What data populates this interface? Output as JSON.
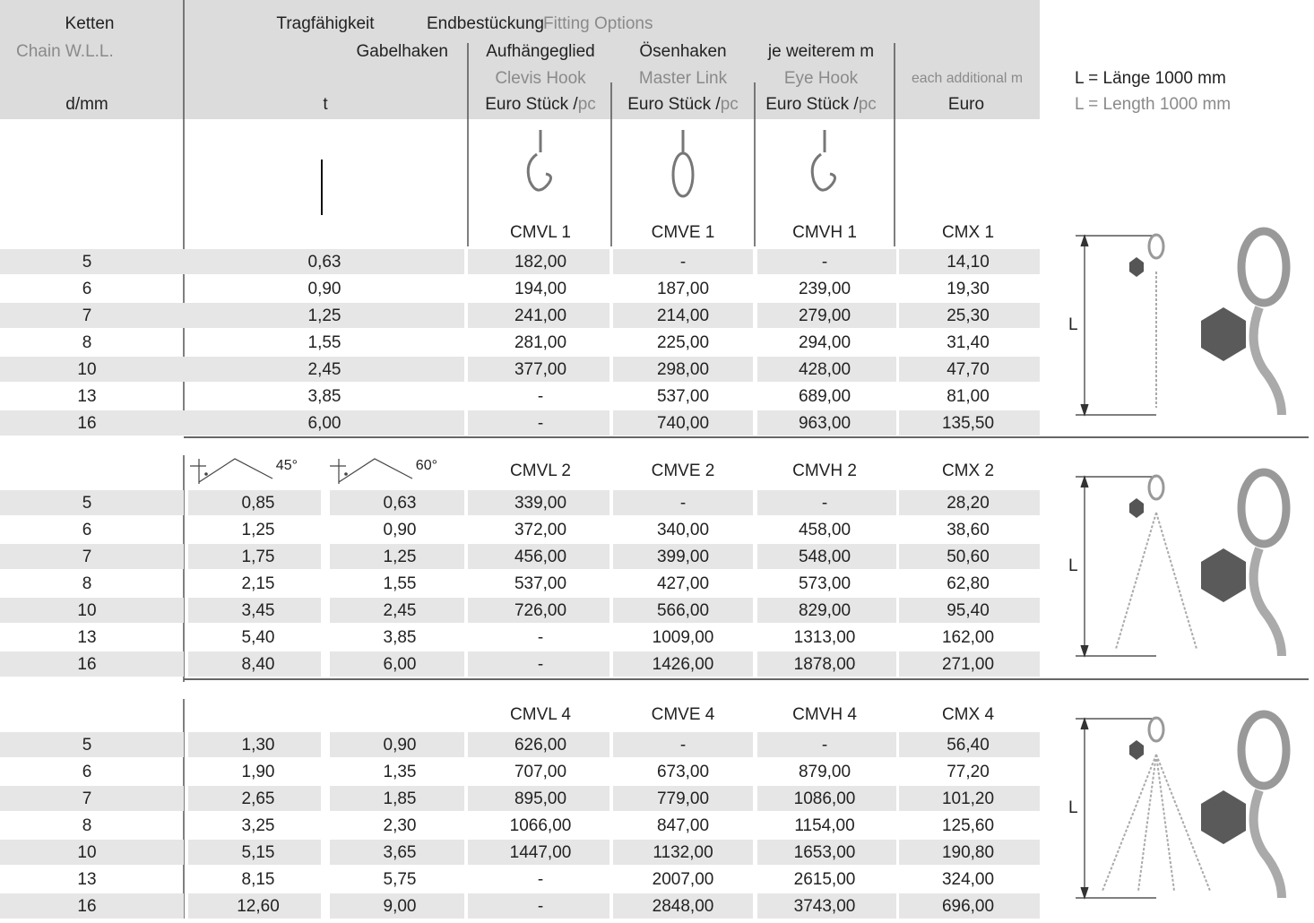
{
  "header": {
    "chain_de": "Ketten",
    "chain_en": "Chain W.L.L.",
    "chain_unit": "d/mm",
    "wll_de": "Tragfähigkeit",
    "wll_unit": "t",
    "fitting_de": "Endbestückung",
    "fitting_en": "Fitting Options",
    "fittings_de": [
      "Gabelhaken",
      "Aufhängeglied",
      "Ösenhaken",
      "je weiterem m"
    ],
    "fittings_en": [
      "Clevis Hook",
      "Master Link",
      "Eye Hook",
      "each additional m"
    ],
    "price_unit_de": "Euro Stück /",
    "price_unit_en": "pc",
    "price_unit_m": "Euro"
  },
  "length_note": {
    "de": "L = Länge 1000 mm",
    "en": "L = Length 1000 mm",
    "symbol": "L"
  },
  "sections": [
    {
      "codes": [
        "CMVL 1",
        "CMVE 1",
        "CMVH 1",
        "CMX 1"
      ],
      "rows": [
        [
          "5",
          "0,63",
          "182,00",
          "-",
          "-",
          "14,10"
        ],
        [
          "6",
          "0,90",
          "194,00",
          "187,00",
          "239,00",
          "19,30"
        ],
        [
          "7",
          "1,25",
          "241,00",
          "214,00",
          "279,00",
          "25,30"
        ],
        [
          "8",
          "1,55",
          "281,00",
          "225,00",
          "294,00",
          "31,40"
        ],
        [
          "10",
          "2,45",
          "377,00",
          "298,00",
          "428,00",
          "47,70"
        ],
        [
          "13",
          "3,85",
          "-",
          "537,00",
          "689,00",
          "81,00"
        ],
        [
          "16",
          "6,00",
          "-",
          "740,00",
          "963,00",
          "135,50"
        ]
      ]
    },
    {
      "angles": [
        "45°",
        "60°"
      ],
      "codes": [
        "CMVL 2",
        "CMVE 2",
        "CMVH 2",
        "CMX 2"
      ],
      "rows": [
        [
          "5",
          "0,85",
          "0,63",
          "339,00",
          "-",
          "-",
          "28,20"
        ],
        [
          "6",
          "1,25",
          "0,90",
          "372,00",
          "340,00",
          "458,00",
          "38,60"
        ],
        [
          "7",
          "1,75",
          "1,25",
          "456,00",
          "399,00",
          "548,00",
          "50,60"
        ],
        [
          "8",
          "2,15",
          "1,55",
          "537,00",
          "427,00",
          "573,00",
          "62,80"
        ],
        [
          "10",
          "3,45",
          "2,45",
          "726,00",
          "566,00",
          "829,00",
          "95,40"
        ],
        [
          "13",
          "5,40",
          "3,85",
          "-",
          "1009,00",
          "1313,00",
          "162,00"
        ],
        [
          "16",
          "8,40",
          "6,00",
          "-",
          "1426,00",
          "1878,00",
          "271,00"
        ]
      ]
    },
    {
      "codes": [
        "CMVL 4",
        "CMVE 4",
        "CMVH 4",
        "CMX 4"
      ],
      "rows": [
        [
          "5",
          "1,30",
          "0,90",
          "626,00",
          "-",
          "-",
          "56,40"
        ],
        [
          "6",
          "1,90",
          "1,35",
          "707,00",
          "673,00",
          "879,00",
          "77,20"
        ],
        [
          "7",
          "2,65",
          "1,85",
          "895,00",
          "779,00",
          "1086,00",
          "101,20"
        ],
        [
          "8",
          "3,25",
          "2,30",
          "1066,00",
          "847,00",
          "1154,00",
          "125,60"
        ],
        [
          "10",
          "5,15",
          "3,65",
          "1447,00",
          "1132,00",
          "1653,00",
          "190,80"
        ],
        [
          "13",
          "8,15",
          "5,75",
          "-",
          "2007,00",
          "2615,00",
          "324,00"
        ],
        [
          "16",
          "12,60",
          "9,00",
          "-",
          "2848,00",
          "3743,00",
          "696,00"
        ]
      ]
    }
  ]
}
